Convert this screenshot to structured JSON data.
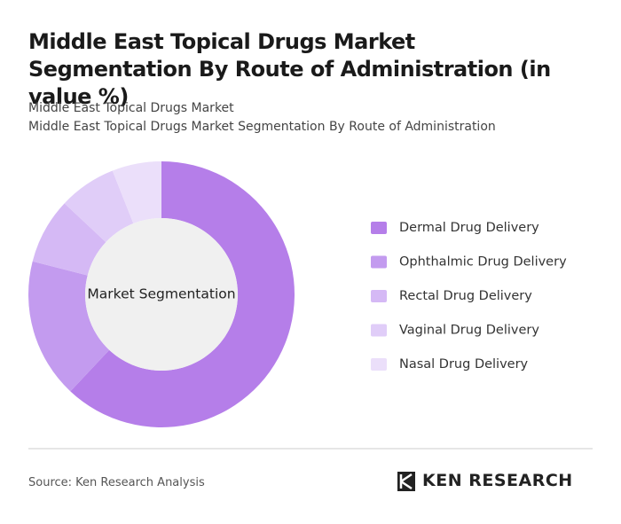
{
  "chart_data": {
    "type": "pie",
    "title": "Middle East Topical Drugs Market Segmentation By Route of Administration (in value %)",
    "subtitle": [
      "Middle East Topical Drugs Market",
      "Middle East Topical Drugs Market Segmentation By Route of Administration"
    ],
    "center_label": "Market Segmentation",
    "categories": [
      "Dermal Drug Delivery",
      "Ophthalmic Drug Delivery",
      "Rectal Drug Delivery",
      "Vaginal Drug Delivery",
      "Nasal Drug Delivery"
    ],
    "values": [
      62,
      17,
      8,
      7,
      6
    ],
    "colors": [
      "#b57ee9",
      "#c39bef",
      "#d5b9f5",
      "#e0cdf8",
      "#ebdffa"
    ]
  },
  "footer": {
    "source": "Source: Ken Research Analysis",
    "logo": "KEN RESEARCH"
  }
}
